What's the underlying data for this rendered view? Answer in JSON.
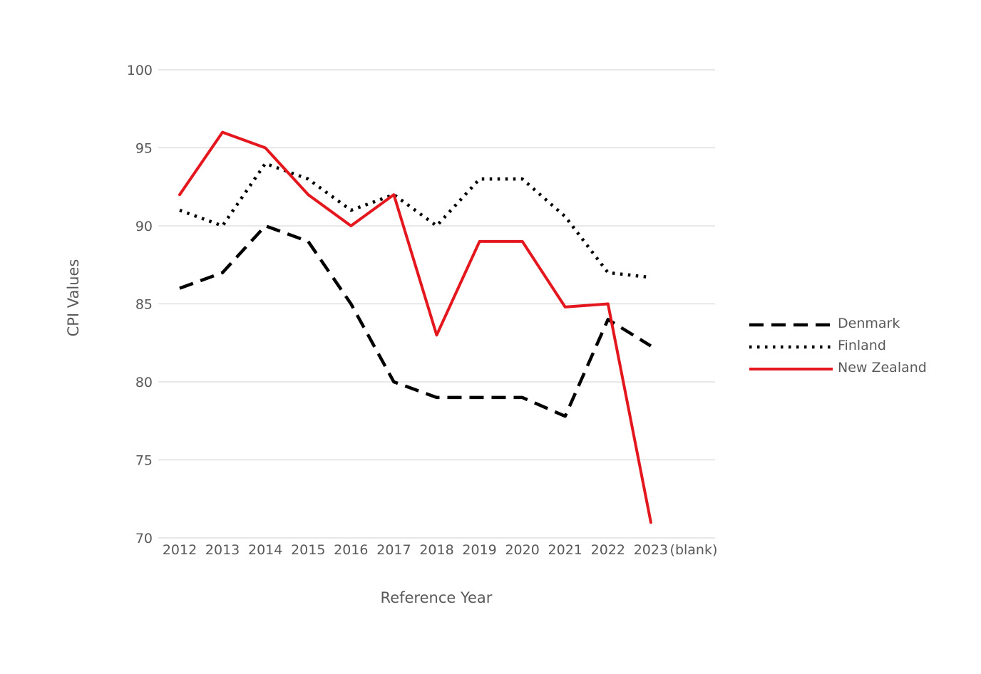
{
  "chart_data": {
    "type": "line",
    "title": "",
    "xlabel": "Reference Year",
    "ylabel": "CPI Values",
    "categories": [
      "2012",
      "2013",
      "2014",
      "2015",
      "2016",
      "2017",
      "2018",
      "2019",
      "2020",
      "2021",
      "2022",
      "2023",
      "(blank)"
    ],
    "ylim": [
      70,
      100
    ],
    "yticks": [
      70,
      75,
      80,
      85,
      90,
      95,
      100
    ],
    "grid": true,
    "legend_position": "right",
    "series": [
      {
        "name": "Denmark",
        "color": "#000000",
        "style": "dashed",
        "values": [
          86,
          87,
          90,
          89,
          85,
          80,
          79,
          79,
          79,
          77.8,
          84,
          82.3,
          null
        ]
      },
      {
        "name": "Finland",
        "color": "#000000",
        "style": "dotted",
        "values": [
          91,
          90,
          94,
          93,
          91,
          92,
          90,
          93,
          93,
          90.6,
          87,
          86.7,
          null
        ]
      },
      {
        "name": "New Zealand",
        "color": "#e3171d",
        "style": "solid",
        "values": [
          92,
          96,
          95,
          92,
          90,
          92,
          83,
          89,
          89,
          84.8,
          85,
          71,
          null
        ]
      }
    ]
  }
}
